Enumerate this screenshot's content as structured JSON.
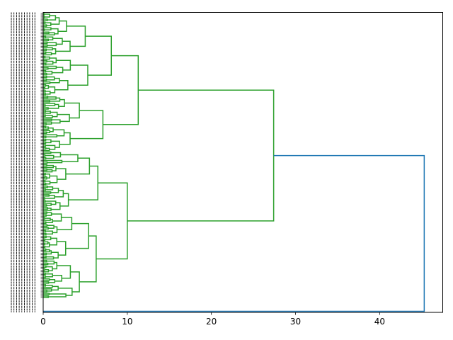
{
  "chart_data": {
    "type": "dendrogram",
    "orientation": "left",
    "title": "",
    "xlabel": "",
    "ylabel": "",
    "xlim": [
      0,
      47.5
    ],
    "xticks": [
      0,
      10,
      20,
      30,
      40
    ],
    "grid": false,
    "legend": "none",
    "colors": {
      "cluster": "#2ca02c",
      "root_link": "#1f77b4",
      "axes": "#000000"
    },
    "merge_heights": {
      "root": 45.3,
      "main_cluster": 27.4,
      "upper_group": 11.3,
      "lower_group": 10.0,
      "upper_a": 8.1,
      "upper_b": 7.1,
      "lower_a": 6.5,
      "lower_b": 6.3
    }
  }
}
